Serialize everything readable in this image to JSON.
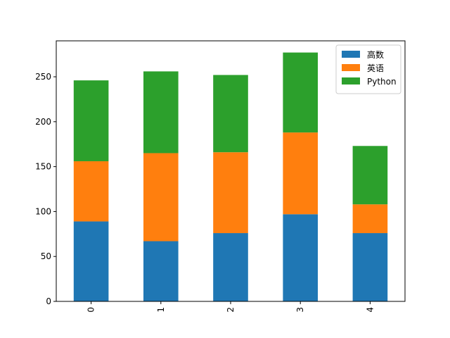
{
  "chart_data": {
    "type": "bar",
    "stacked": true,
    "categories": [
      "0",
      "1",
      "2",
      "3",
      "4"
    ],
    "series": [
      {
        "name": "高数",
        "color": "#1f77b4",
        "values": [
          89,
          67,
          76,
          97,
          76
        ]
      },
      {
        "name": "英语",
        "color": "#ff7f0e",
        "values": [
          67,
          98,
          90,
          91,
          32
        ]
      },
      {
        "name": "Python",
        "color": "#2ca02c",
        "values": [
          90,
          91,
          86,
          89,
          65
        ]
      }
    ],
    "ylim": [
      0,
      290
    ],
    "yticks": [
      0,
      50,
      100,
      150,
      200,
      250
    ],
    "xtick_rotation": 90,
    "legend_position": "upper-right",
    "grid": false
  }
}
